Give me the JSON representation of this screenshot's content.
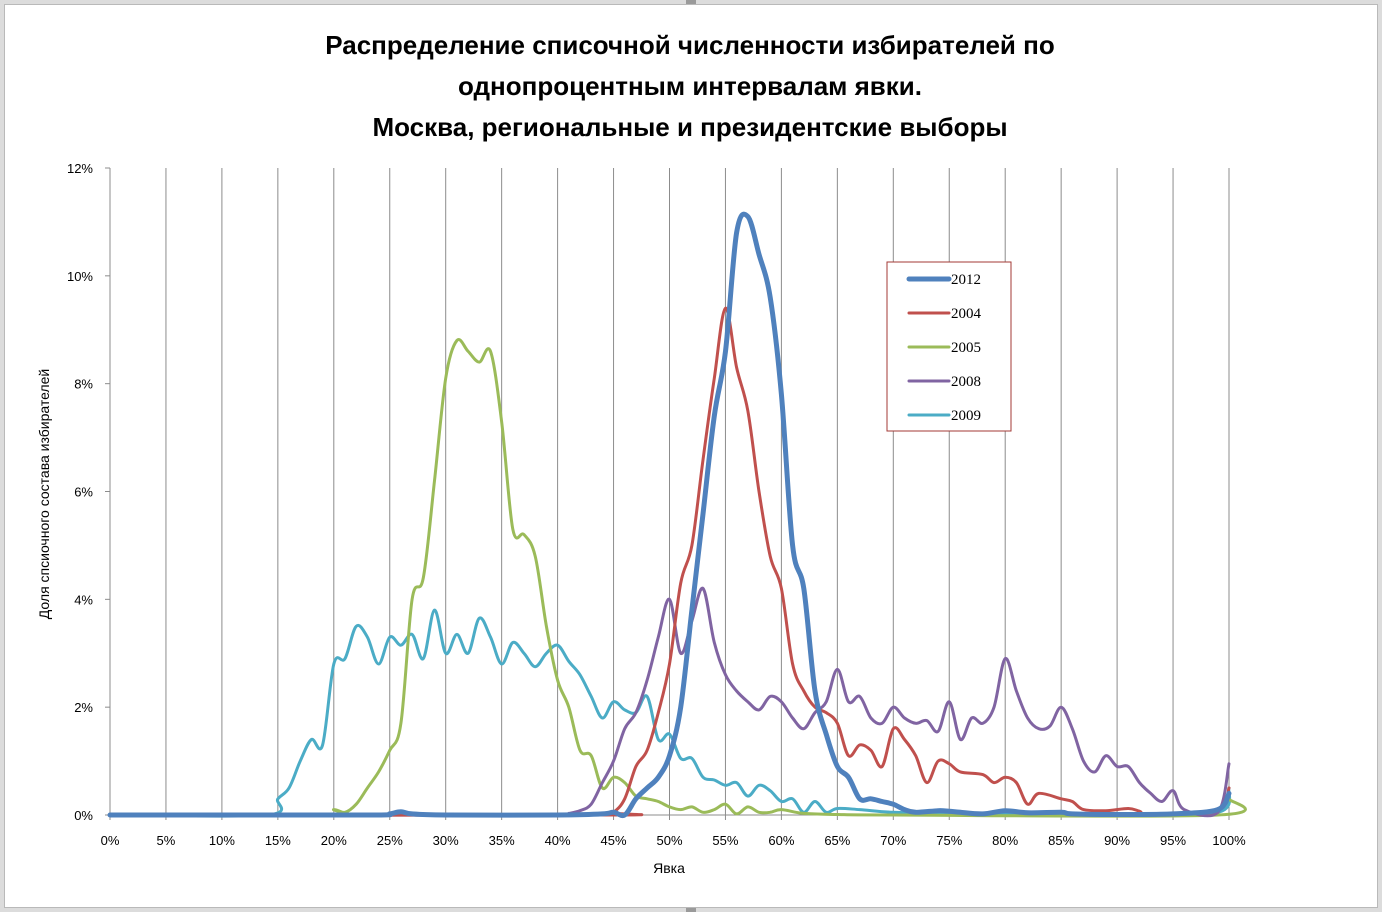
{
  "chart_data": {
    "type": "line",
    "title_lines": [
      "Распределение списочной численности избирателей по",
      "однопроцентным интервалам явки.",
      "Москва, региональные и президентские выборы"
    ],
    "xlabel": "Явка",
    "ylabel": "Доля спсиочного состава избирателей",
    "xlim": [
      0,
      100
    ],
    "ylim": [
      0,
      12
    ],
    "x_ticks": [
      "0%",
      "5%",
      "10%",
      "15%",
      "20%",
      "25%",
      "30%",
      "35%",
      "40%",
      "45%",
      "50%",
      "55%",
      "60%",
      "65%",
      "70%",
      "75%",
      "80%",
      "85%",
      "90%",
      "95%",
      "100%"
    ],
    "y_ticks": [
      "0%",
      "2%",
      "4%",
      "6%",
      "8%",
      "10%",
      "12%"
    ],
    "grid": "vertical",
    "legend_position": "top-right",
    "series": [
      {
        "name": "2012",
        "color": "#4F81BD",
        "width": 5,
        "points": [
          [
            0,
            0
          ],
          [
            14,
            0
          ],
          [
            24,
            0
          ],
          [
            25,
            0.02
          ],
          [
            26,
            0.06
          ],
          [
            27,
            0.02
          ],
          [
            30,
            0
          ],
          [
            40,
            0
          ],
          [
            44,
            0.02
          ],
          [
            45,
            0.05
          ],
          [
            46,
            0
          ],
          [
            47,
            0.3
          ],
          [
            48,
            0.5
          ],
          [
            49,
            0.7
          ],
          [
            50,
            1.1
          ],
          [
            51,
            2.0
          ],
          [
            52,
            3.8
          ],
          [
            53,
            5.6
          ],
          [
            54,
            7.4
          ],
          [
            55,
            8.6
          ],
          [
            56,
            10.8
          ],
          [
            57,
            11.1
          ],
          [
            58,
            10.4
          ],
          [
            59,
            9.6
          ],
          [
            60,
            7.8
          ],
          [
            61,
            5.0
          ],
          [
            62,
            4.2
          ],
          [
            63,
            2.3
          ],
          [
            64,
            1.5
          ],
          [
            65,
            0.9
          ],
          [
            66,
            0.7
          ],
          [
            67,
            0.3
          ],
          [
            68,
            0.3
          ],
          [
            69,
            0.25
          ],
          [
            70,
            0.2
          ],
          [
            71,
            0.1
          ],
          [
            72,
            0.05
          ],
          [
            74,
            0.08
          ],
          [
            75,
            0.07
          ],
          [
            76,
            0.05
          ],
          [
            78,
            0.02
          ],
          [
            80,
            0.08
          ],
          [
            82,
            0.04
          ],
          [
            85,
            0.05
          ],
          [
            86,
            0.02
          ],
          [
            90,
            0.01
          ],
          [
            95,
            0.02
          ],
          [
            99,
            0.1
          ],
          [
            100,
            0.4
          ]
        ]
      },
      {
        "name": "2004",
        "color": "#C0504D",
        "width": 3,
        "points": [
          [
            0,
            0
          ],
          [
            44,
            0
          ],
          [
            45,
            0.05
          ],
          [
            46,
            0.3
          ],
          [
            47,
            0.9
          ],
          [
            48,
            1.2
          ],
          [
            49,
            1.9
          ],
          [
            50,
            2.8
          ],
          [
            51,
            4.3
          ],
          [
            52,
            5.0
          ],
          [
            53,
            6.6
          ],
          [
            54,
            8.1
          ],
          [
            55,
            9.4
          ],
          [
            56,
            8.3
          ],
          [
            57,
            7.5
          ],
          [
            58,
            6.0
          ],
          [
            59,
            4.8
          ],
          [
            60,
            4.2
          ],
          [
            61,
            2.8
          ],
          [
            62,
            2.3
          ],
          [
            63,
            2.0
          ],
          [
            64,
            1.9
          ],
          [
            65,
            1.7
          ],
          [
            66,
            1.1
          ],
          [
            67,
            1.3
          ],
          [
            68,
            1.2
          ],
          [
            69,
            0.9
          ],
          [
            70,
            1.6
          ],
          [
            71,
            1.4
          ],
          [
            72,
            1.1
          ],
          [
            73,
            0.6
          ],
          [
            74,
            1.0
          ],
          [
            75,
            0.95
          ],
          [
            76,
            0.8
          ],
          [
            78,
            0.75
          ],
          [
            79,
            0.6
          ],
          [
            80,
            0.7
          ],
          [
            81,
            0.6
          ],
          [
            82,
            0.2
          ],
          [
            83,
            0.4
          ],
          [
            85,
            0.3
          ],
          [
            86,
            0.25
          ],
          [
            87,
            0.1
          ],
          [
            89,
            0.08
          ],
          [
            91,
            0.12
          ],
          [
            92,
            0.07
          ],
          [
            93,
            0.02
          ],
          [
            99,
            0.1
          ],
          [
            100,
            0.5
          ]
        ]
      },
      {
        "name": "2005",
        "color": "#9BBB59",
        "width": 3,
        "points": [
          [
            0,
            0
          ],
          [
            19,
            0
          ],
          [
            20,
            0.1
          ],
          [
            21,
            0.05
          ],
          [
            22,
            0.2
          ],
          [
            23,
            0.5
          ],
          [
            24,
            0.8
          ],
          [
            25,
            1.2
          ],
          [
            26,
            1.7
          ],
          [
            27,
            4.0
          ],
          [
            28,
            4.4
          ],
          [
            29,
            6.2
          ],
          [
            30,
            8.1
          ],
          [
            31,
            8.8
          ],
          [
            32,
            8.6
          ],
          [
            33,
            8.4
          ],
          [
            34,
            8.6
          ],
          [
            35,
            7.3
          ],
          [
            36,
            5.3
          ],
          [
            37,
            5.2
          ],
          [
            38,
            4.8
          ],
          [
            39,
            3.5
          ],
          [
            40,
            2.5
          ],
          [
            41,
            2.0
          ],
          [
            42,
            1.2
          ],
          [
            43,
            1.1
          ],
          [
            44,
            0.5
          ],
          [
            45,
            0.7
          ],
          [
            46,
            0.6
          ],
          [
            47,
            0.35
          ],
          [
            48,
            0.3
          ],
          [
            49,
            0.25
          ],
          [
            50,
            0.15
          ],
          [
            51,
            0.1
          ],
          [
            52,
            0.15
          ],
          [
            53,
            0.05
          ],
          [
            54,
            0.1
          ],
          [
            55,
            0.2
          ],
          [
            56,
            0.02
          ],
          [
            57,
            0.15
          ],
          [
            58,
            0.05
          ],
          [
            59,
            0.05
          ],
          [
            60,
            0.1
          ],
          [
            62,
            0.03
          ],
          [
            65,
            0.01
          ],
          [
            70,
            0
          ],
          [
            99,
            0
          ],
          [
            100,
            0.3
          ]
        ]
      },
      {
        "name": "2008",
        "color": "#8064A2",
        "width": 3,
        "points": [
          [
            0,
            0
          ],
          [
            40,
            0
          ],
          [
            41,
            0.03
          ],
          [
            42,
            0.08
          ],
          [
            43,
            0.2
          ],
          [
            44,
            0.6
          ],
          [
            45,
            1.0
          ],
          [
            46,
            1.6
          ],
          [
            47,
            1.9
          ],
          [
            48,
            2.5
          ],
          [
            49,
            3.3
          ],
          [
            50,
            4.0
          ],
          [
            51,
            3.0
          ],
          [
            52,
            3.6
          ],
          [
            53,
            4.2
          ],
          [
            54,
            3.2
          ],
          [
            55,
            2.6
          ],
          [
            56,
            2.3
          ],
          [
            57,
            2.1
          ],
          [
            58,
            1.95
          ],
          [
            59,
            2.2
          ],
          [
            60,
            2.1
          ],
          [
            61,
            1.8
          ],
          [
            62,
            1.6
          ],
          [
            63,
            1.9
          ],
          [
            64,
            2.1
          ],
          [
            65,
            2.7
          ],
          [
            66,
            2.1
          ],
          [
            67,
            2.2
          ],
          [
            68,
            1.8
          ],
          [
            69,
            1.7
          ],
          [
            70,
            2.0
          ],
          [
            71,
            1.8
          ],
          [
            72,
            1.7
          ],
          [
            73,
            1.75
          ],
          [
            74,
            1.55
          ],
          [
            75,
            2.1
          ],
          [
            76,
            1.4
          ],
          [
            77,
            1.8
          ],
          [
            78,
            1.7
          ],
          [
            79,
            2.0
          ],
          [
            80,
            2.9
          ],
          [
            81,
            2.3
          ],
          [
            82,
            1.8
          ],
          [
            83,
            1.6
          ],
          [
            84,
            1.65
          ],
          [
            85,
            2.0
          ],
          [
            86,
            1.6
          ],
          [
            87,
            1.0
          ],
          [
            88,
            0.8
          ],
          [
            89,
            1.1
          ],
          [
            90,
            0.9
          ],
          [
            91,
            0.9
          ],
          [
            92,
            0.6
          ],
          [
            93,
            0.4
          ],
          [
            94,
            0.25
          ],
          [
            95,
            0.45
          ],
          [
            96,
            0.1
          ],
          [
            99,
            0.05
          ],
          [
            100,
            0.95
          ]
        ]
      },
      {
        "name": "2009",
        "color": "#4BACC6",
        "width": 3,
        "points": [
          [
            0,
            0
          ],
          [
            14,
            0
          ],
          [
            15,
            0.3
          ],
          [
            16,
            0.5
          ],
          [
            17,
            1.0
          ],
          [
            18,
            1.4
          ],
          [
            19,
            1.3
          ],
          [
            20,
            2.8
          ],
          [
            21,
            2.9
          ],
          [
            22,
            3.5
          ],
          [
            23,
            3.3
          ],
          [
            24,
            2.8
          ],
          [
            25,
            3.3
          ],
          [
            26,
            3.15
          ],
          [
            27,
            3.35
          ],
          [
            28,
            2.9
          ],
          [
            29,
            3.8
          ],
          [
            30,
            3.0
          ],
          [
            31,
            3.35
          ],
          [
            32,
            3.0
          ],
          [
            33,
            3.65
          ],
          [
            34,
            3.3
          ],
          [
            35,
            2.8
          ],
          [
            36,
            3.2
          ],
          [
            37,
            3.0
          ],
          [
            38,
            2.75
          ],
          [
            39,
            3.0
          ],
          [
            40,
            3.15
          ],
          [
            41,
            2.85
          ],
          [
            42,
            2.6
          ],
          [
            43,
            2.2
          ],
          [
            44,
            1.8
          ],
          [
            45,
            2.1
          ],
          [
            46,
            1.95
          ],
          [
            47,
            1.9
          ],
          [
            48,
            2.2
          ],
          [
            49,
            1.4
          ],
          [
            50,
            1.5
          ],
          [
            51,
            1.05
          ],
          [
            52,
            1.05
          ],
          [
            53,
            0.7
          ],
          [
            54,
            0.65
          ],
          [
            55,
            0.55
          ],
          [
            56,
            0.6
          ],
          [
            57,
            0.35
          ],
          [
            58,
            0.55
          ],
          [
            59,
            0.45
          ],
          [
            60,
            0.25
          ],
          [
            61,
            0.3
          ],
          [
            62,
            0.05
          ],
          [
            63,
            0.25
          ],
          [
            64,
            0.05
          ],
          [
            65,
            0.12
          ],
          [
            67,
            0.1
          ],
          [
            70,
            0.05
          ],
          [
            75,
            0.03
          ],
          [
            80,
            0.02
          ],
          [
            90,
            0.01
          ],
          [
            99,
            0.05
          ],
          [
            100,
            0.5
          ]
        ]
      }
    ]
  }
}
